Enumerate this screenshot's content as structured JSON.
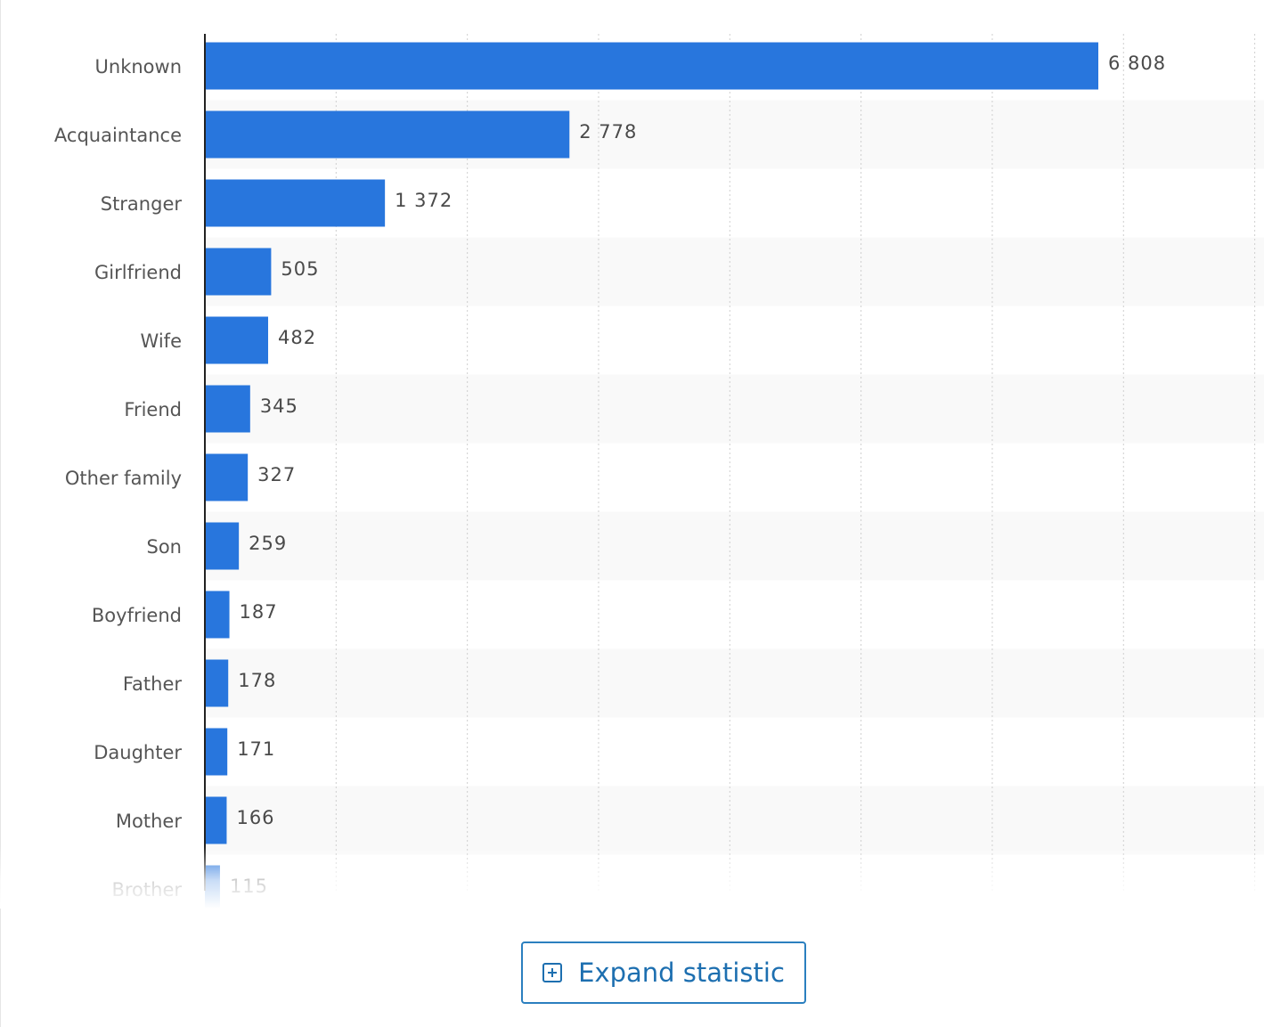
{
  "chart_data": {
    "type": "bar",
    "orientation": "horizontal",
    "categories": [
      "Unknown",
      "Acquaintance",
      "Stranger",
      "Girlfriend",
      "Wife",
      "Friend",
      "Other family",
      "Son",
      "Boyfriend",
      "Father",
      "Daughter",
      "Mother",
      "Brother"
    ],
    "values": [
      6808,
      2778,
      1372,
      505,
      482,
      345,
      327,
      259,
      187,
      178,
      171,
      166,
      115
    ],
    "value_labels": [
      "6 808",
      "2 778",
      "1 372",
      "505",
      "482",
      "345",
      "327",
      "259",
      "187",
      "178",
      "171",
      "166",
      "115"
    ],
    "title": "",
    "xlabel": "",
    "ylabel": "",
    "xlim": [
      0,
      8000
    ],
    "grid": "vertical dotted",
    "bar_color": "#2876dd"
  },
  "expand": {
    "label": "Expand statistic",
    "icon": "plus-square-icon"
  },
  "colors": {
    "accent": "#1d6fb0",
    "band": "#f9f9f9",
    "grid": "#cfcfcf"
  }
}
